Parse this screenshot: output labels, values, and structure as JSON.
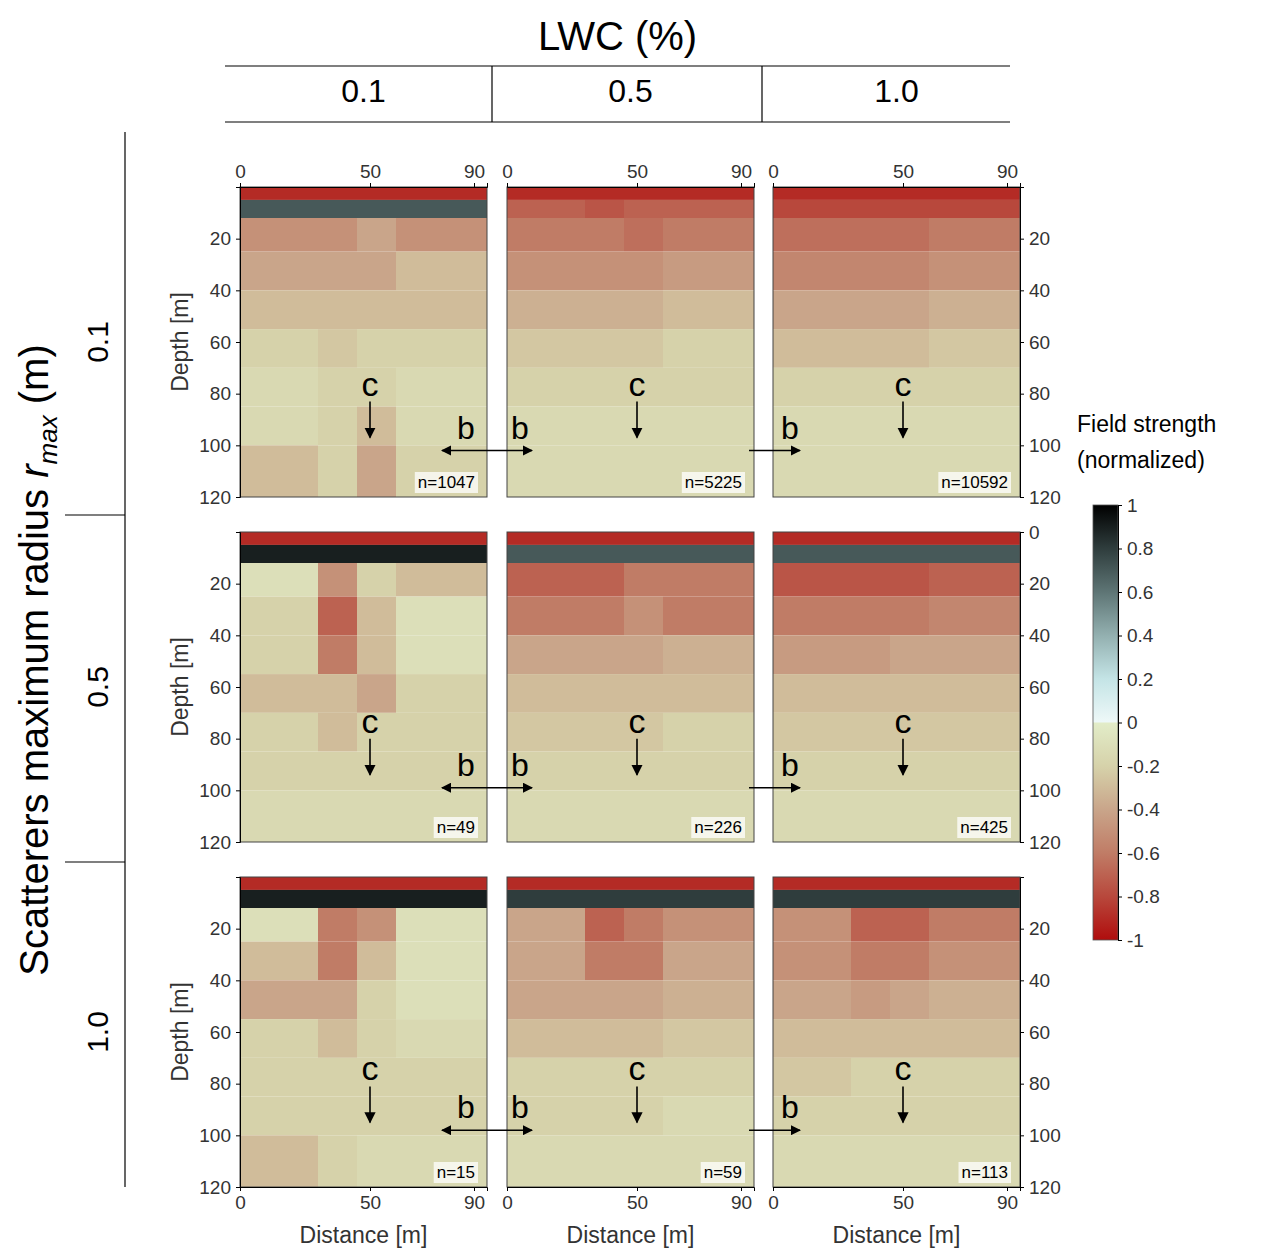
{
  "header": {
    "title": "LWC (%)",
    "columns": [
      "0.1",
      "0.5",
      "1.0"
    ]
  },
  "row_header": {
    "title": [
      "Scatterers maximum radius ",
      "r",
      "max",
      " (m)"
    ],
    "rows": [
      "0.1",
      "0.5",
      "1.0"
    ]
  },
  "colorbar": {
    "title": "Field strength (normalized)",
    "range": [
      -1,
      1
    ],
    "ticks": [
      1,
      0.8,
      0.6,
      0.4,
      0.2,
      0,
      -0.2,
      -0.4,
      -0.6,
      -0.8,
      -1
    ]
  },
  "links": [
    [
      {
        "labels": [
          "b",
          "b"
        ],
        "y": 102
      },
      {
        "labels": [
          "b"
        ],
        "y": 102
      }
    ],
    [
      {
        "labels": [
          "b",
          "b"
        ],
        "y": 99
      },
      {
        "labels": [
          "b"
        ],
        "y": 99
      }
    ],
    [
      {
        "labels": [
          "b",
          "b"
        ],
        "y": 98
      },
      {
        "labels": [
          "b"
        ],
        "y": 98
      }
    ]
  ],
  "chart_data": [
    {
      "type": "heatmap",
      "xlim": [
        0,
        95
      ],
      "ylim": [
        0,
        120
      ],
      "xticks": [
        0,
        50,
        90
      ],
      "yticks": [
        20,
        40,
        60,
        80,
        100,
        120
      ],
      "ylabel": "Depth [m]",
      "x_bins": [
        0,
        30,
        45,
        60,
        95
      ],
      "y_bins": [
        0,
        5,
        12,
        25,
        40,
        55,
        70,
        85,
        100,
        120
      ],
      "cells": [
        [
          -0.9,
          -0.9,
          -0.9,
          -0.9
        ],
        [
          0.7,
          0.7,
          0.7,
          0.7
        ],
        [
          -0.5,
          -0.5,
          -0.4,
          -0.5
        ],
        [
          -0.4,
          -0.4,
          -0.4,
          -0.3
        ],
        [
          -0.3,
          -0.3,
          -0.3,
          -0.3
        ],
        [
          -0.2,
          -0.25,
          -0.2,
          -0.2
        ],
        [
          -0.15,
          -0.2,
          -0.2,
          -0.15
        ],
        [
          -0.15,
          -0.2,
          -0.3,
          -0.15
        ],
        [
          -0.3,
          -0.2,
          -0.4,
          -0.2
        ]
      ],
      "n_label": "n=1047",
      "annotations": [
        {
          "text": "c",
          "x": 50,
          "y": 97
        }
      ]
    },
    {
      "type": "heatmap",
      "xlim": [
        0,
        95
      ],
      "ylim": [
        0,
        120
      ],
      "xticks": [
        0,
        50,
        90
      ],
      "x_bins": [
        0,
        30,
        45,
        60,
        95
      ],
      "y_bins": [
        0,
        5,
        12,
        25,
        40,
        55,
        70,
        85,
        100,
        120
      ],
      "cells": [
        [
          -0.9,
          -0.9,
          -0.9,
          -0.9
        ],
        [
          -0.7,
          -0.75,
          -0.7,
          -0.7
        ],
        [
          -0.6,
          -0.6,
          -0.65,
          -0.6
        ],
        [
          -0.5,
          -0.5,
          -0.5,
          -0.45
        ],
        [
          -0.35,
          -0.35,
          -0.35,
          -0.3
        ],
        [
          -0.25,
          -0.25,
          -0.25,
          -0.2
        ],
        [
          -0.2,
          -0.2,
          -0.2,
          -0.2
        ],
        [
          -0.15,
          -0.15,
          -0.15,
          -0.15
        ],
        [
          -0.15,
          -0.15,
          -0.15,
          -0.15
        ]
      ],
      "n_label": "n=5225",
      "annotations": [
        {
          "text": "c",
          "x": 50,
          "y": 97
        }
      ]
    },
    {
      "type": "heatmap",
      "xlim": [
        0,
        95
      ],
      "ylim": [
        0,
        120
      ],
      "xticks": [
        0,
        50,
        90
      ],
      "y2lim": [
        0,
        120
      ],
      "y2ticks": [
        20,
        40,
        60,
        80,
        100,
        120
      ],
      "x_bins": [
        0,
        30,
        45,
        60,
        95
      ],
      "y_bins": [
        0,
        5,
        12,
        25,
        40,
        55,
        70,
        85,
        100,
        120
      ],
      "cells": [
        [
          -0.9,
          -0.9,
          -0.9,
          -0.9
        ],
        [
          -0.8,
          -0.8,
          -0.8,
          -0.8
        ],
        [
          -0.65,
          -0.65,
          -0.65,
          -0.6
        ],
        [
          -0.55,
          -0.55,
          -0.55,
          -0.5
        ],
        [
          -0.4,
          -0.4,
          -0.4,
          -0.35
        ],
        [
          -0.3,
          -0.3,
          -0.3,
          -0.25
        ],
        [
          -0.2,
          -0.2,
          -0.2,
          -0.2
        ],
        [
          -0.15,
          -0.15,
          -0.15,
          -0.15
        ],
        [
          -0.15,
          -0.15,
          -0.15,
          -0.15
        ]
      ],
      "n_label": "n=10592",
      "annotations": [
        {
          "text": "c",
          "x": 50,
          "y": 97
        }
      ]
    },
    {
      "type": "heatmap",
      "xlim": [
        0,
        95
      ],
      "ylim": [
        0,
        120
      ],
      "yticks": [
        20,
        40,
        60,
        80,
        100,
        120
      ],
      "ylabel": "Depth [m]",
      "x_bins": [
        0,
        30,
        45,
        60,
        95
      ],
      "y_bins": [
        0,
        5,
        12,
        25,
        40,
        55,
        70,
        85,
        100,
        120
      ],
      "cells": [
        [
          -0.9,
          -0.9,
          -0.9,
          -0.9
        ],
        [
          0.9,
          0.9,
          0.9,
          0.9
        ],
        [
          -0.1,
          -0.5,
          -0.2,
          -0.3
        ],
        [
          -0.2,
          -0.7,
          -0.3,
          -0.1
        ],
        [
          -0.2,
          -0.6,
          -0.3,
          -0.1
        ],
        [
          -0.3,
          -0.3,
          -0.4,
          -0.2
        ],
        [
          -0.2,
          -0.3,
          -0.2,
          -0.2
        ],
        [
          -0.2,
          -0.2,
          -0.2,
          -0.2
        ],
        [
          -0.15,
          -0.15,
          -0.15,
          -0.15
        ]
      ],
      "n_label": "n=49",
      "annotations": [
        {
          "text": "c",
          "x": 50,
          "y": 94
        }
      ]
    },
    {
      "type": "heatmap",
      "xlim": [
        0,
        95
      ],
      "ylim": [
        0,
        120
      ],
      "x_bins": [
        0,
        30,
        45,
        60,
        95
      ],
      "y_bins": [
        0,
        5,
        12,
        25,
        40,
        55,
        70,
        85,
        100,
        120
      ],
      "cells": [
        [
          -0.9,
          -0.9,
          -0.9,
          -0.9
        ],
        [
          0.7,
          0.7,
          0.7,
          0.7
        ],
        [
          -0.7,
          -0.7,
          -0.6,
          -0.6
        ],
        [
          -0.6,
          -0.6,
          -0.5,
          -0.6
        ],
        [
          -0.4,
          -0.4,
          -0.4,
          -0.35
        ],
        [
          -0.3,
          -0.3,
          -0.3,
          -0.3
        ],
        [
          -0.25,
          -0.25,
          -0.25,
          -0.2
        ],
        [
          -0.2,
          -0.2,
          -0.2,
          -0.2
        ],
        [
          -0.15,
          -0.15,
          -0.15,
          -0.15
        ]
      ],
      "n_label": "n=226",
      "annotations": [
        {
          "text": "c",
          "x": 50,
          "y": 94
        }
      ]
    },
    {
      "type": "heatmap",
      "xlim": [
        0,
        95
      ],
      "ylim": [
        0,
        120
      ],
      "y2lim": [
        0,
        120
      ],
      "y2ticks": [
        0,
        20,
        40,
        60,
        80,
        100,
        120
      ],
      "x_bins": [
        0,
        30,
        45,
        60,
        95
      ],
      "y_bins": [
        0,
        5,
        12,
        25,
        40,
        55,
        70,
        85,
        100,
        120
      ],
      "cells": [
        [
          -0.9,
          -0.9,
          -0.9,
          -0.9
        ],
        [
          0.7,
          0.7,
          0.7,
          0.7
        ],
        [
          -0.75,
          -0.75,
          -0.75,
          -0.7
        ],
        [
          -0.6,
          -0.6,
          -0.6,
          -0.55
        ],
        [
          -0.45,
          -0.45,
          -0.4,
          -0.4
        ],
        [
          -0.3,
          -0.3,
          -0.3,
          -0.3
        ],
        [
          -0.25,
          -0.25,
          -0.25,
          -0.25
        ],
        [
          -0.2,
          -0.2,
          -0.2,
          -0.2
        ],
        [
          -0.15,
          -0.15,
          -0.15,
          -0.15
        ]
      ],
      "n_label": "n=425",
      "annotations": [
        {
          "text": "c",
          "x": 50,
          "y": 94
        }
      ]
    },
    {
      "type": "heatmap",
      "xlim": [
        0,
        95
      ],
      "ylim": [
        0,
        120
      ],
      "xticks": [
        0,
        50,
        90
      ],
      "xlabel": "Distance [m]",
      "yticks": [
        20,
        40,
        60,
        80,
        100,
        120
      ],
      "ylabel": "Depth [m]",
      "x_bins": [
        0,
        30,
        45,
        60,
        95
      ],
      "y_bins": [
        0,
        5,
        12,
        25,
        40,
        55,
        70,
        85,
        100,
        120
      ],
      "cells": [
        [
          -0.9,
          -0.9,
          -0.9,
          -0.9
        ],
        [
          0.9,
          0.9,
          0.9,
          0.9
        ],
        [
          -0.1,
          -0.6,
          -0.5,
          -0.1
        ],
        [
          -0.3,
          -0.6,
          -0.3,
          -0.1
        ],
        [
          -0.4,
          -0.4,
          -0.2,
          -0.1
        ],
        [
          -0.2,
          -0.3,
          -0.2,
          -0.15
        ],
        [
          -0.2,
          -0.2,
          -0.2,
          -0.2
        ],
        [
          -0.2,
          -0.2,
          -0.2,
          -0.2
        ],
        [
          -0.3,
          -0.2,
          -0.15,
          -0.15
        ]
      ],
      "n_label": "n=15",
      "annotations": [
        {
          "text": "c",
          "x": 50,
          "y": 95
        }
      ]
    },
    {
      "type": "heatmap",
      "xlim": [
        0,
        95
      ],
      "ylim": [
        0,
        120
      ],
      "xticks": [
        0,
        50,
        90
      ],
      "xlabel": "Distance [m]",
      "x_bins": [
        0,
        30,
        45,
        60,
        95
      ],
      "y_bins": [
        0,
        5,
        12,
        25,
        40,
        55,
        70,
        85,
        100,
        120
      ],
      "cells": [
        [
          -0.9,
          -0.9,
          -0.9,
          -0.9
        ],
        [
          0.8,
          0.8,
          0.8,
          0.8
        ],
        [
          -0.4,
          -0.7,
          -0.6,
          -0.5
        ],
        [
          -0.4,
          -0.6,
          -0.6,
          -0.4
        ],
        [
          -0.4,
          -0.4,
          -0.4,
          -0.35
        ],
        [
          -0.3,
          -0.3,
          -0.3,
          -0.25
        ],
        [
          -0.2,
          -0.2,
          -0.2,
          -0.2
        ],
        [
          -0.2,
          -0.2,
          -0.2,
          -0.15
        ],
        [
          -0.15,
          -0.15,
          -0.15,
          -0.15
        ]
      ],
      "n_label": "n=59",
      "annotations": [
        {
          "text": "c",
          "x": 50,
          "y": 95
        }
      ]
    },
    {
      "type": "heatmap",
      "xlim": [
        0,
        95
      ],
      "ylim": [
        0,
        120
      ],
      "xticks": [
        0,
        50,
        90
      ],
      "xlabel": "Distance [m]",
      "y2lim": [
        0,
        120
      ],
      "y2ticks": [
        20,
        40,
        60,
        80,
        100,
        120
      ],
      "x_bins": [
        0,
        30,
        45,
        60,
        95
      ],
      "y_bins": [
        0,
        5,
        12,
        25,
        40,
        55,
        70,
        85,
        100,
        120
      ],
      "cells": [
        [
          -0.9,
          -0.9,
          -0.9,
          -0.9
        ],
        [
          0.8,
          0.8,
          0.8,
          0.8
        ],
        [
          -0.5,
          -0.7,
          -0.7,
          -0.6
        ],
        [
          -0.5,
          -0.6,
          -0.6,
          -0.5
        ],
        [
          -0.4,
          -0.45,
          -0.4,
          -0.35
        ],
        [
          -0.3,
          -0.3,
          -0.3,
          -0.3
        ],
        [
          -0.25,
          -0.2,
          -0.2,
          -0.2
        ],
        [
          -0.2,
          -0.2,
          -0.2,
          -0.2
        ],
        [
          -0.15,
          -0.15,
          -0.15,
          -0.15
        ]
      ],
      "n_label": "n=113",
      "annotations": [
        {
          "text": "c",
          "x": 50,
          "y": 95
        }
      ]
    }
  ]
}
